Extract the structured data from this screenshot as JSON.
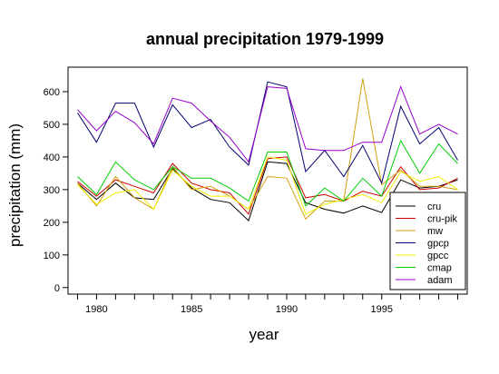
{
  "chart_data": {
    "type": "line",
    "title": "annual precipitation 1979-1999",
    "xlabel": "year",
    "ylabel": "precipitation (mm)",
    "xlim": [
      1978.5,
      1999.5
    ],
    "ylim": [
      -20,
      675
    ],
    "x_ticks": [
      1980,
      1985,
      1990,
      1995
    ],
    "y_ticks": [
      0,
      100,
      200,
      300,
      400,
      500,
      600
    ],
    "grid": false,
    "legend_position": "bottom-right",
    "x": [
      1979,
      1980,
      1981,
      1982,
      1983,
      1984,
      1985,
      1986,
      1987,
      1988,
      1989,
      1990,
      1991,
      1992,
      1993,
      1994,
      1995,
      1996,
      1997,
      1998,
      1999
    ],
    "series": [
      {
        "name": "cru",
        "color": "#000000",
        "values": [
          320,
          270,
          320,
          275,
          270,
          365,
          305,
          270,
          260,
          205,
          385,
          380,
          260,
          240,
          228,
          250,
          230,
          330,
          305,
          310,
          330
        ]
      },
      {
        "name": "cru-pik",
        "color": "#cc0000",
        "values": [
          325,
          280,
          330,
          310,
          290,
          380,
          320,
          300,
          290,
          225,
          395,
          400,
          275,
          285,
          265,
          295,
          280,
          370,
          300,
          305,
          335
        ]
      },
      {
        "name": "mw",
        "color": "#d4a010",
        "values": [
          320,
          250,
          340,
          275,
          240,
          370,
          300,
          310,
          280,
          240,
          340,
          335,
          210,
          265,
          265,
          640,
          315,
          360,
          310,
          310,
          300
        ]
      },
      {
        "name": "gpcp",
        "color": "#00006e",
        "values": [
          535,
          445,
          565,
          565,
          430,
          560,
          490,
          515,
          430,
          375,
          630,
          615,
          355,
          420,
          340,
          435,
          320,
          555,
          440,
          490,
          390
        ]
      },
      {
        "name": "gpcc",
        "color": "#f0f000",
        "values": [
          315,
          255,
          290,
          300,
          240,
          360,
          310,
          280,
          280,
          240,
          400,
          390,
          225,
          255,
          270,
          285,
          260,
          355,
          325,
          340,
          300
        ]
      },
      {
        "name": "cmap",
        "color": "#00cc00",
        "values": [
          340,
          285,
          385,
          330,
          300,
          370,
          335,
          335,
          305,
          265,
          415,
          415,
          250,
          305,
          265,
          335,
          280,
          450,
          350,
          440,
          380
        ]
      },
      {
        "name": "adam",
        "color": "#9900cc",
        "values": [
          545,
          480,
          540,
          505,
          440,
          580,
          565,
          510,
          460,
          385,
          615,
          610,
          425,
          420,
          420,
          445,
          445,
          615,
          470,
          500,
          470
        ]
      }
    ]
  }
}
